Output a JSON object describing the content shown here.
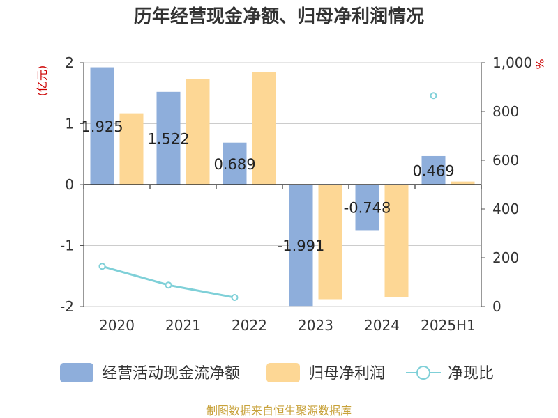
{
  "chart_data": {
    "type": "bar",
    "title": "历年经营现金净额、归母净利润情况",
    "categories": [
      "2020",
      "2021",
      "2022",
      "2023",
      "2024",
      "2025H1"
    ],
    "left_axis": {
      "unit": "(亿元)",
      "range": [
        -2,
        2
      ],
      "ticks": [
        2,
        1,
        0,
        -1,
        -2
      ]
    },
    "right_axis": {
      "unit": "%",
      "range": [
        0,
        1000
      ],
      "ticks": [
        "1,000",
        "800",
        "600",
        "400",
        "200",
        "0"
      ],
      "tick_values": [
        1000,
        800,
        600,
        400,
        200,
        0
      ]
    },
    "series": [
      {
        "name": "经营活动现金流净额",
        "type": "bar",
        "axis": "left",
        "color": "#8eaedb",
        "values": [
          1.925,
          1.522,
          0.689,
          -1.991,
          -0.748,
          0.469
        ],
        "labels": [
          "1.925",
          "1.522",
          "0.689",
          "-1.991",
          "-0.748",
          "0.469"
        ]
      },
      {
        "name": "归母净利润",
        "type": "bar",
        "axis": "left",
        "color": "#fdd795",
        "values": [
          1.17,
          1.73,
          1.84,
          -1.88,
          -1.85,
          0.05
        ]
      },
      {
        "name": "净现比",
        "type": "line",
        "axis": "right",
        "color": "#7fd0d8",
        "values": [
          165,
          88,
          37,
          null,
          null,
          865
        ]
      }
    ],
    "legend_position": "bottom",
    "grid": true
  },
  "source": "制图数据来自恒生聚源数据库"
}
